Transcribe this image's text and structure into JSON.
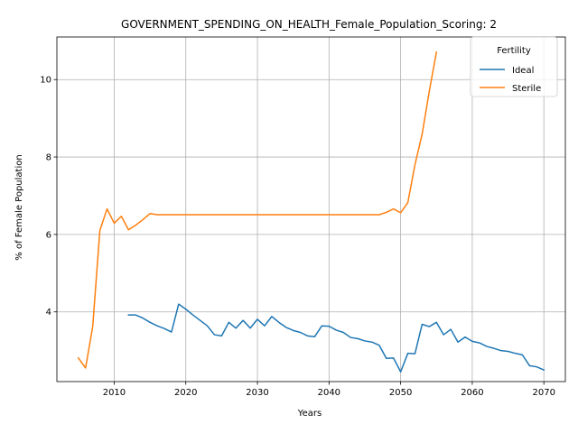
{
  "chart_data": {
    "type": "line",
    "title": "GOVERNMENT_SPENDING_ON_HEALTH_Female_Population_Scoring: 2",
    "xlabel": "Years",
    "ylabel": "% of Female Population",
    "xlim": [
      2002,
      2073
    ],
    "ylim": [
      2.2,
      11.1
    ],
    "xticks": [
      2010,
      2020,
      2030,
      2040,
      2050,
      2060,
      2070
    ],
    "yticks": [
      4,
      6,
      8,
      10
    ],
    "grid": true,
    "legend": {
      "title": "Fertility",
      "placement": "top-right"
    },
    "series": [
      {
        "name": "Ideal",
        "color": "#1f77b4",
        "x": [
          2012,
          2013,
          2014,
          2015,
          2016,
          2017,
          2018,
          2019,
          2020,
          2021,
          2022,
          2023,
          2024,
          2025,
          2026,
          2027,
          2028,
          2029,
          2030,
          2031,
          2032,
          2033,
          2034,
          2035,
          2036,
          2037,
          2038,
          2039,
          2040,
          2041,
          2042,
          2043,
          2044,
          2045,
          2046,
          2047,
          2048,
          2049,
          2050,
          2051,
          2052,
          2053,
          2054,
          2055,
          2056,
          2057,
          2058,
          2059,
          2060,
          2061,
          2062,
          2063,
          2064,
          2065,
          2066,
          2067,
          2068,
          2069,
          2070
        ],
        "y": [
          3.92,
          3.92,
          3.84,
          3.73,
          3.64,
          3.57,
          3.48,
          4.2,
          4.07,
          3.92,
          3.78,
          3.64,
          3.41,
          3.38,
          3.73,
          3.58,
          3.78,
          3.58,
          3.81,
          3.64,
          3.88,
          3.73,
          3.6,
          3.52,
          3.47,
          3.38,
          3.36,
          3.64,
          3.63,
          3.53,
          3.47,
          3.34,
          3.31,
          3.25,
          3.22,
          3.14,
          2.8,
          2.81,
          2.45,
          2.93,
          2.92,
          3.68,
          3.62,
          3.73,
          3.41,
          3.55,
          3.22,
          3.35,
          3.24,
          3.2,
          3.11,
          3.06,
          3.0,
          2.98,
          2.93,
          2.89,
          2.61,
          2.58,
          2.5
        ]
      },
      {
        "name": "Sterile",
        "color": "#ff7f0e",
        "x": [
          2005,
          2006,
          2007,
          2008,
          2009,
          2010,
          2011,
          2012,
          2013,
          2014,
          2015,
          2016,
          2017,
          2018,
          2019,
          2020,
          2021,
          2022,
          2023,
          2024,
          2025,
          2026,
          2027,
          2028,
          2029,
          2030,
          2031,
          2032,
          2033,
          2034,
          2035,
          2036,
          2037,
          2038,
          2039,
          2040,
          2041,
          2042,
          2043,
          2044,
          2045,
          2046,
          2047,
          2048,
          2049,
          2050,
          2051,
          2052,
          2053,
          2054,
          2055
        ],
        "y": [
          2.81,
          2.55,
          3.62,
          6.1,
          6.66,
          6.29,
          6.47,
          6.12,
          6.24,
          6.38,
          6.54,
          6.51,
          6.51,
          6.51,
          6.51,
          6.51,
          6.51,
          6.51,
          6.51,
          6.51,
          6.51,
          6.51,
          6.51,
          6.51,
          6.51,
          6.51,
          6.51,
          6.51,
          6.51,
          6.51,
          6.51,
          6.51,
          6.51,
          6.51,
          6.51,
          6.51,
          6.51,
          6.51,
          6.51,
          6.51,
          6.51,
          6.51,
          6.51,
          6.57,
          6.66,
          6.56,
          6.82,
          7.8,
          8.59,
          9.7,
          10.71
        ]
      }
    ]
  }
}
